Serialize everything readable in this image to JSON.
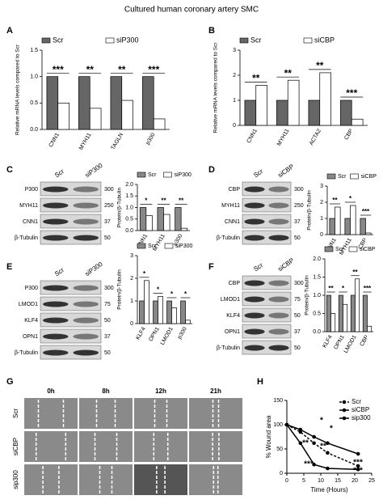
{
  "title": "Cultured human coronary artery SMC",
  "panels": [
    "A",
    "B",
    "C",
    "D",
    "E",
    "F",
    "G",
    "H"
  ],
  "blots": [
    {
      "lanes": [
        "Scr",
        "siP300"
      ],
      "rows": [
        {
          "label": "P300",
          "kda": 300
        },
        {
          "label": "MYH11",
          "kda": 250
        },
        {
          "label": "CNN1",
          "kda": 37
        },
        {
          "label": "β-Tubulin",
          "kda": 50
        }
      ]
    },
    {
      "lanes": [
        "Scr",
        "siCBP"
      ],
      "rows": [
        {
          "label": "CBP",
          "kda": 300
        },
        {
          "label": "MYH11",
          "kda": 250
        },
        {
          "label": "CNN1",
          "kda": 37
        },
        {
          "label": "β-Tubulin",
          "kda": 50
        }
      ]
    },
    {
      "lanes": [
        "Scr",
        "siP300"
      ],
      "rows": [
        {
          "label": "P300",
          "kda": 300
        },
        {
          "label": "LMOD1",
          "kda": 75
        },
        {
          "label": "KLF4",
          "kda": 50
        },
        {
          "label": "OPN1",
          "kda": 37
        },
        {
          "label": "β-Tubulin",
          "kda": 50
        }
      ]
    },
    {
      "lanes": [
        "Scr",
        "siCBP"
      ],
      "rows": [
        {
          "label": "CBP",
          "kda": 300
        },
        {
          "label": "LMOD1",
          "kda": 75
        },
        {
          "label": "KLF4",
          "kda": 50
        },
        {
          "label": "OPN1",
          "kda": 37
        },
        {
          "label": "β-Tubulin",
          "kda": 50
        }
      ]
    }
  ],
  "wound": {
    "times": [
      "0h",
      "8h",
      "12h",
      "21h"
    ],
    "rows": [
      "Scr",
      "siCBP",
      "sip300"
    ]
  },
  "chart_data": [
    {
      "type": "bar",
      "categories": [
        "CNN1",
        "MYH11",
        "TAGLN",
        "p300"
      ],
      "series": [
        {
          "name": "Scr",
          "color": "#666666",
          "values": [
            1,
            1,
            1,
            1
          ]
        },
        {
          "name": "siP300",
          "color": "#ffffff",
          "values": [
            0.5,
            0.4,
            0.55,
            0.2
          ]
        }
      ],
      "ylabel": "Relative mRNA levels compared to Scr",
      "ylim": [
        0,
        1.5
      ],
      "yticks": [
        {
          "value": 0,
          "label": "0.0"
        },
        0.5,
        {
          "value": 1,
          "label": "1.0"
        },
        1.5
      ],
      "annotations": [
        "***",
        "**",
        "**",
        "***"
      ]
    },
    {
      "type": "bar",
      "categories": [
        "CNN1",
        "MYH11",
        "ACTA2",
        "CBP"
      ],
      "series": [
        {
          "name": "Scr",
          "color": "#666666",
          "values": [
            1,
            1,
            1,
            1
          ]
        },
        {
          "name": "siCBP",
          "color": "#ffffff",
          "values": [
            1.6,
            1.8,
            2.1,
            0.25
          ]
        }
      ],
      "ylabel": "Relative mRNA levels compared to Scr",
      "ylim": [
        0,
        3
      ],
      "yticks": [
        0,
        1,
        2,
        3
      ],
      "annotations": [
        "**",
        "**",
        "**",
        "***"
      ]
    },
    {
      "type": "bar",
      "categories": [
        "CNN1",
        "MYH11",
        "p300"
      ],
      "series": [
        {
          "name": "Scr",
          "color": "#888888",
          "values": [
            1,
            1,
            1
          ]
        },
        {
          "name": "siP300",
          "color": "#ffffff",
          "values": [
            0.65,
            0.7,
            0.1
          ]
        }
      ],
      "ylabel": "Protein/β-Tubulin",
      "ylim": [
        0,
        2
      ],
      "yticks": [
        {
          "value": 0,
          "label": "0.0"
        },
        0.5,
        {
          "value": 1,
          "label": "1.0"
        },
        1.5,
        {
          "value": 2,
          "label": "2.0"
        }
      ],
      "annotations": [
        "*",
        "**",
        "**"
      ]
    },
    {
      "type": "bar",
      "categories": [
        "CNN1",
        "MYH11",
        "CBP"
      ],
      "series": [
        {
          "name": "Scr",
          "color": "#888888",
          "values": [
            1,
            1,
            1
          ]
        },
        {
          "name": "siCBP",
          "color": "#ffffff",
          "values": [
            1.7,
            1.8,
            0.1
          ]
        }
      ],
      "ylabel": "Protein/β-Tubulin",
      "ylim": [
        0,
        3
      ],
      "yticks": [
        0,
        1,
        2,
        3
      ],
      "annotations": [
        "**",
        "*",
        "***"
      ]
    },
    {
      "type": "bar",
      "categories": [
        "KLF4",
        "OPN1",
        "LMOD1",
        "p300"
      ],
      "series": [
        {
          "name": "Scr",
          "color": "#888888",
          "values": [
            1,
            1,
            1,
            1
          ]
        },
        {
          "name": "siP300",
          "color": "#ffffff",
          "values": [
            1.9,
            1.2,
            0.7,
            0.15
          ]
        }
      ],
      "ylabel": "Protein/β-Tubulin",
      "ylim": [
        0,
        3
      ],
      "yticks": [
        0,
        1,
        2,
        3
      ],
      "annotations": [
        "*",
        "*",
        "*",
        "*"
      ]
    },
    {
      "type": "bar",
      "categories": [
        "KLF4",
        "OPN1",
        "LMOD1",
        "CBP"
      ],
      "series": [
        {
          "name": "Scr",
          "color": "#888888",
          "values": [
            1,
            1,
            1,
            1
          ]
        },
        {
          "name": "siCBP",
          "color": "#ffffff",
          "values": [
            0.5,
            0.75,
            1.45,
            0.15
          ]
        }
      ],
      "ylabel": "Protein/β-Tubulin",
      "ylim": [
        0,
        2
      ],
      "yticks": [
        {
          "value": 0,
          "label": "0.0"
        },
        0.5,
        {
          "value": 1,
          "label": "1.0"
        },
        1.5,
        {
          "value": 2,
          "label": "2.0"
        }
      ],
      "annotations": [
        "**",
        "*",
        "**",
        "***"
      ]
    },
    {
      "type": "line",
      "x": [
        0,
        4,
        8,
        12,
        21
      ],
      "series": [
        {
          "name": "Scr",
          "color": "#000000",
          "dashed": true,
          "values": [
            100,
            85,
            62,
            42,
            15
          ]
        },
        {
          "name": "siCBP",
          "color": "#000000",
          "values": [
            100,
            90,
            75,
            62,
            40
          ]
        },
        {
          "name": "sip300",
          "color": "#000000",
          "values": [
            100,
            62,
            18,
            10,
            8
          ]
        }
      ],
      "xlabel": "Time (Hours)",
      "ylabel": "% Wound area",
      "xlim": [
        0,
        25
      ],
      "xticks": [
        0,
        5,
        10,
        15,
        20,
        25
      ],
      "ylim": [
        0,
        150
      ],
      "yticks": [
        0,
        50,
        100,
        150
      ],
      "annotations": [
        "*",
        "**",
        "*",
        "**",
        "***",
        "***",
        "***"
      ]
    }
  ]
}
